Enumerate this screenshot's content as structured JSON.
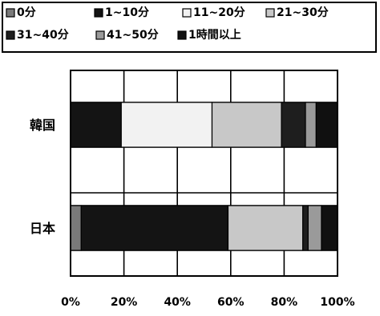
{
  "chart_data": {
    "type": "bar",
    "orientation": "horizontal",
    "stacked": "percent",
    "categories": [
      "韓国",
      "日本"
    ],
    "series": [
      {
        "name": "0分",
        "values": [
          0,
          4
        ],
        "color": "#7a7a7a"
      },
      {
        "name": "1~10分",
        "values": [
          19,
          55
        ],
        "color": "#141414"
      },
      {
        "name": "11~20分",
        "values": [
          34,
          0
        ],
        "color": "#f2f2f2"
      },
      {
        "name": "21~30分",
        "values": [
          26,
          28
        ],
        "color": "#c8c8c8"
      },
      {
        "name": "31~40分",
        "values": [
          9,
          2
        ],
        "color": "#1e1e1e"
      },
      {
        "name": "41~50分",
        "values": [
          4,
          5
        ],
        "color": "#9a9a9a"
      },
      {
        "name": "1時間以上",
        "values": [
          8,
          6
        ],
        "color": "#101010"
      }
    ],
    "xlim": [
      0,
      100
    ],
    "x_ticks": [
      "0%",
      "20%",
      "40%",
      "60%",
      "80%",
      "100%"
    ],
    "grid": true,
    "legend_position": "top"
  }
}
